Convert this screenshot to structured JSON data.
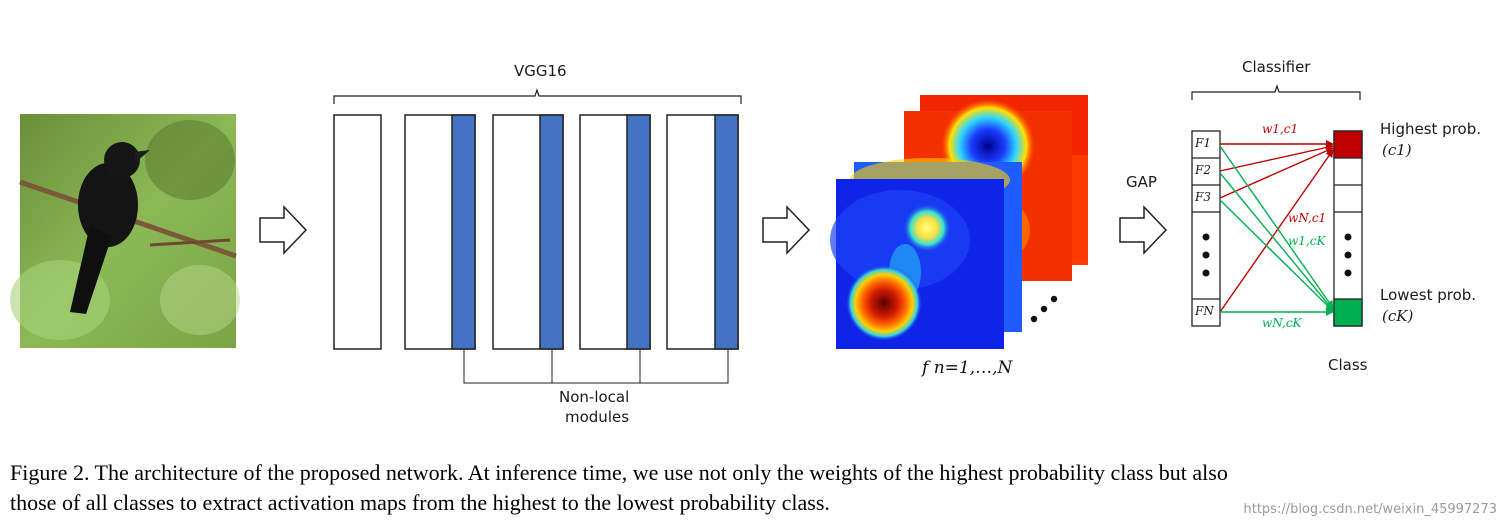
{
  "vgg_label": "VGG16",
  "nonlocal_label_line1": "Non-local",
  "nonlocal_label_line2": "modules",
  "feature_label": "f n=1,…,N",
  "gap_label": "GAP",
  "classifier_label": "Classifier",
  "class_label": "Class",
  "features": [
    "F1",
    "F2",
    "F3",
    "FN"
  ],
  "weights": {
    "w1c1": "w1,c1",
    "wNc1": "wN,c1",
    "w1cK": "w1,cK",
    "wNcK": "wN,cK"
  },
  "highest_line1": "Highest prob.",
  "highest_line2": "(c1)",
  "lowest_line1": "Lowest prob.",
  "lowest_line2": "(cK)",
  "caption_line1": "Figure 2. The architecture of the proposed network. At inference time, we use not only the weights of the highest probability class but also",
  "caption_line2": "those of all classes to extract activation maps from the highest to the lowest probability class.",
  "watermark": "https://blog.csdn.net/weixin_45997273",
  "colors": {
    "module_blue": "#4472c4",
    "red_arrow": "#c00000",
    "green_arrow": "#00b050",
    "class_red": "#c00000",
    "class_green": "#00b050"
  }
}
